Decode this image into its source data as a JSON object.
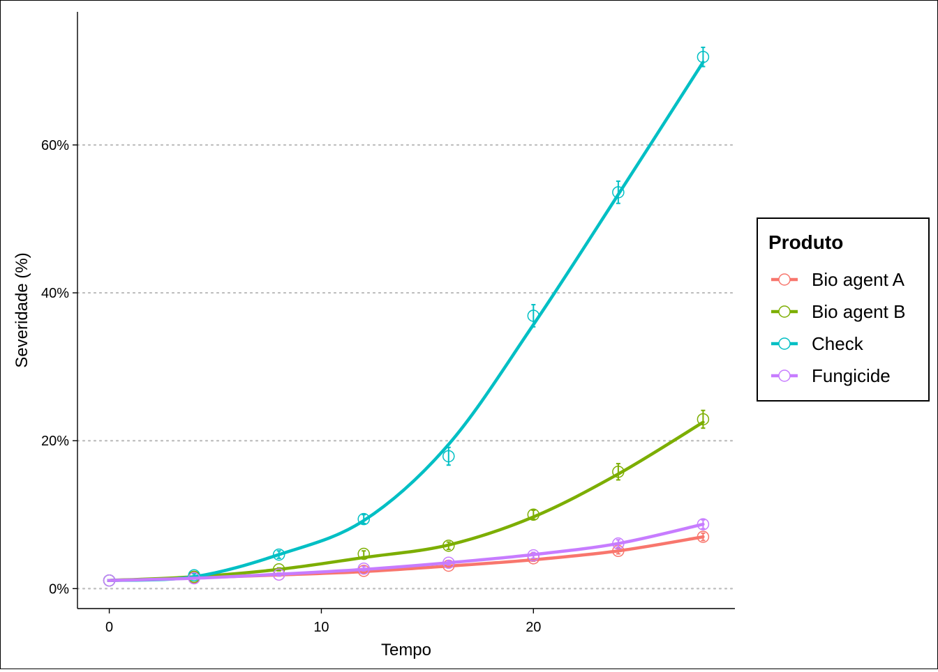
{
  "chart_data": {
    "type": "line",
    "xlabel": "Tempo",
    "ylabel": "Severidade (%)",
    "xlim": [
      -1.5,
      29.5
    ],
    "ylim": [
      -0.027,
      0.78
    ],
    "x_ticks": [
      0,
      10,
      20
    ],
    "x_tick_labels": [
      "0",
      "10",
      "20"
    ],
    "y_ticks": [
      0,
      0.2,
      0.4,
      0.6
    ],
    "y_tick_labels": [
      "0%",
      "20%",
      "40%",
      "60%"
    ],
    "grid": "horizontal dotted",
    "legend": {
      "title": "Produto",
      "placement": "right",
      "entries": [
        "Bio agent A",
        "Bio agent B",
        "Check",
        "Fungicide"
      ]
    },
    "x": [
      0,
      4,
      8,
      12,
      16,
      20,
      24,
      28
    ],
    "series": [
      {
        "name": "Bio agent A",
        "color": "#F8766D",
        "means": [
          0.011,
          0.015,
          0.019,
          0.024,
          0.031,
          0.041,
          0.051,
          0.07
        ],
        "errors": [
          0.001,
          0.001,
          0.002,
          0.003,
          0.003,
          0.004,
          0.004,
          0.005
        ],
        "fitted": [
          0.011,
          0.0145,
          0.0185,
          0.023,
          0.0305,
          0.039,
          0.051,
          0.07
        ]
      },
      {
        "name": "Bio agent B",
        "color": "#7CAE00",
        "means": [
          0.011,
          0.016,
          0.026,
          0.047,
          0.058,
          0.1,
          0.158,
          0.229
        ],
        "errors": [
          0.001,
          0.001,
          0.002,
          0.004,
          0.005,
          0.006,
          0.011,
          0.012
        ],
        "fitted": [
          0.011,
          0.016,
          0.026,
          0.042,
          0.059,
          0.097,
          0.155,
          0.225
        ]
      },
      {
        "name": "Check",
        "color": "#00BFC4",
        "means": [
          0.011,
          0.018,
          0.046,
          0.094,
          0.179,
          0.369,
          0.536,
          0.719
        ],
        "errors": [
          0.001,
          0.002,
          0.005,
          0.006,
          0.012,
          0.015,
          0.015,
          0.013
        ],
        "fitted": [
          0.011,
          0.016,
          0.046,
          0.092,
          0.195,
          0.357,
          0.533,
          0.712
        ]
      },
      {
        "name": "Fungicide",
        "color": "#C77CFF",
        "means": [
          0.011,
          0.014,
          0.019,
          0.027,
          0.035,
          0.045,
          0.061,
          0.087
        ],
        "errors": [
          0.001,
          0.001,
          0.002,
          0.003,
          0.003,
          0.004,
          0.005,
          0.006
        ],
        "fitted": [
          0.011,
          0.014,
          0.0195,
          0.026,
          0.035,
          0.046,
          0.061,
          0.087
        ]
      }
    ]
  }
}
